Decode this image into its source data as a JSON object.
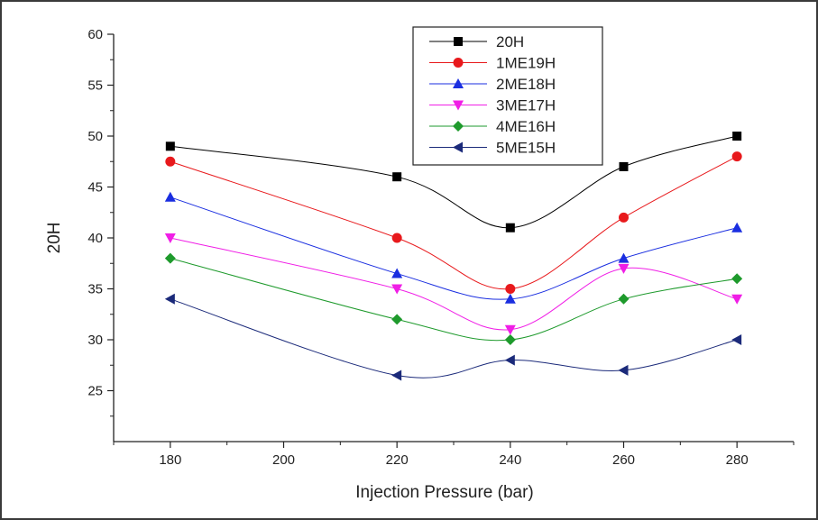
{
  "chart_data": {
    "type": "line",
    "title": "",
    "xlabel": "Injection Pressure (bar)",
    "ylabel": "20H",
    "xlim": [
      170,
      290
    ],
    "ylim": [
      20,
      60
    ],
    "x_ticks": [
      180,
      200,
      220,
      240,
      260,
      280
    ],
    "y_ticks": [
      25,
      30,
      35,
      40,
      45,
      50,
      55,
      60
    ],
    "x": [
      180,
      220,
      240,
      260,
      280
    ],
    "legend_position": "top-center",
    "grid": false,
    "smoothed": true,
    "series": [
      {
        "name": "20H",
        "color": "#000000",
        "marker": "square",
        "values": [
          49,
          46,
          41,
          47,
          50
        ]
      },
      {
        "name": "1ME19H",
        "color": "#e8191c",
        "marker": "circle",
        "values": [
          47.5,
          40,
          35,
          42,
          48
        ]
      },
      {
        "name": "2ME18H",
        "color": "#1a2ee0",
        "marker": "triangle-up",
        "values": [
          44,
          36.5,
          34,
          38,
          41
        ]
      },
      {
        "name": "3ME17H",
        "color": "#f01ee6",
        "marker": "triangle-down",
        "values": [
          40,
          35,
          31,
          37,
          34
        ]
      },
      {
        "name": "4ME16H",
        "color": "#1e9a2c",
        "marker": "diamond",
        "values": [
          38,
          32,
          30,
          34,
          36
        ]
      },
      {
        "name": "5ME15H",
        "color": "#1b2a7a",
        "marker": "triangle-left",
        "values": [
          34,
          26.5,
          28,
          27,
          30
        ]
      }
    ]
  }
}
